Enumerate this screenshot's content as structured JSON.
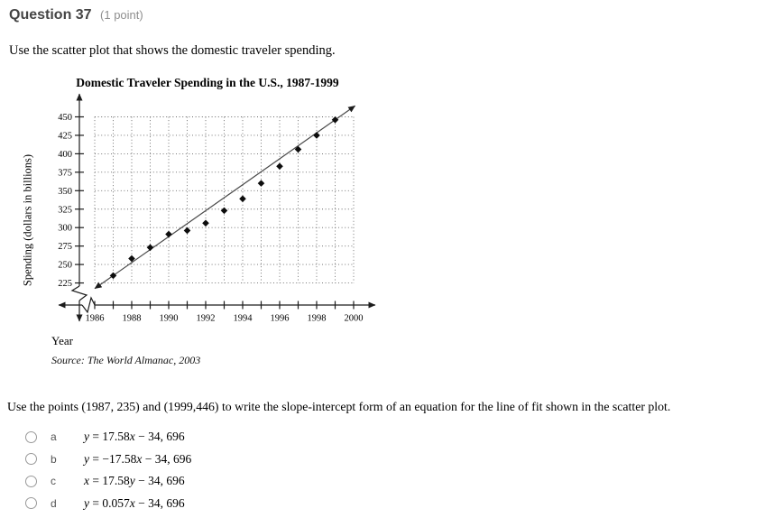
{
  "header": {
    "title": "Question 37",
    "points": "(1 point)"
  },
  "intro": "Use the scatter plot that shows the domestic traveler spending.",
  "question": "Use the points (1987, 235) and (1999,446) to write the slope-intercept form of an equation for the line of fit shown in the scatter plot.",
  "options": [
    {
      "key": "a",
      "equation": "y = 17.58x − 34, 696"
    },
    {
      "key": "b",
      "equation": "y = −17.58x − 34, 696"
    },
    {
      "key": "c",
      "equation": "x = 17.58y − 34, 696"
    },
    {
      "key": "d",
      "equation": "y = 0.057x − 34, 696"
    }
  ],
  "chart_data": {
    "type": "scatter",
    "title": "Domestic Traveler Spending in the U.S., 1987-1999",
    "xlabel": "Year",
    "ylabel": "Spending (dollars in billions)",
    "source": "Source: The World Almanac, 2003",
    "x": [
      1987,
      1988,
      1989,
      1990,
      1991,
      1992,
      1993,
      1994,
      1995,
      1996,
      1997,
      1998,
      1999
    ],
    "y": [
      235,
      258,
      273,
      291,
      296,
      306,
      323,
      339,
      360,
      383,
      406,
      425,
      446
    ],
    "xlim": [
      1986,
      2000
    ],
    "ylim": [
      225,
      450
    ],
    "x_ticks": [
      1986,
      1987,
      1988,
      1989,
      1990,
      1991,
      1992,
      1993,
      1994,
      1995,
      1996,
      1997,
      1998,
      1999,
      2000
    ],
    "x_tick_labels": [
      1986,
      1988,
      1990,
      1992,
      1994,
      1996,
      1998,
      2000
    ],
    "y_ticks": [
      225,
      250,
      275,
      300,
      325,
      350,
      375,
      400,
      425,
      450
    ],
    "grid": true,
    "axis_breaks": true,
    "line_of_fit": {
      "points": [
        [
          1987,
          235
        ],
        [
          1999,
          446
        ]
      ]
    },
    "marker": "diamond"
  }
}
